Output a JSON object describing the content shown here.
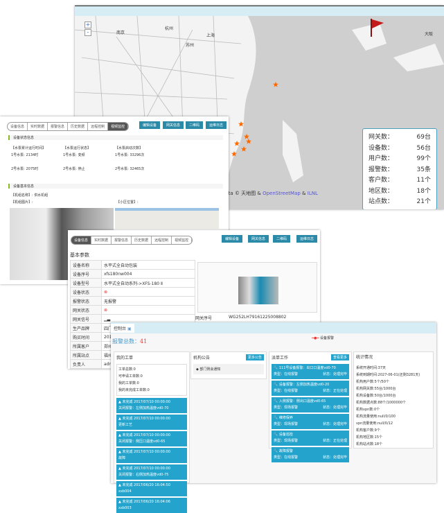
{
  "map": {
    "zoom_in": "+",
    "zoom_out": "-",
    "cities": [
      "南京",
      "杭州",
      "上海",
      "苏州",
      "大阪"
    ],
    "stats": [
      [
        "网关数：",
        "69台"
      ],
      [
        "设备数：",
        "56台"
      ],
      [
        "用户数：",
        "99个"
      ],
      [
        "报警数：",
        "35条"
      ],
      [
        "客户数：",
        "11个"
      ],
      [
        "地区数：",
        "18个"
      ],
      [
        "站点数：",
        "21个"
      ]
    ],
    "attribution": "Data © 天地图 & ",
    "attr_link1": "OpenStreetMap",
    "attr_sep": " & ",
    "attr_link2": "ILNL",
    "colors": {
      "marker": "#ff6a00",
      "flag": "#c41a1a"
    }
  },
  "left": {
    "tabs": [
      "设备信息",
      "实时数据",
      "报警信息",
      "历史数据",
      "远程控制",
      "视频监控"
    ],
    "buttons": [
      "编辑设备",
      "网关信息",
      "二维码",
      "运维日志"
    ],
    "section1": "设备状态信息",
    "cols": [
      [
        "【水泵累计运行时间】",
        "1号水泵: 2134时",
        "2号水泵: 2075时"
      ],
      [
        "【水泵运行状态】",
        "1号水泵: 变频",
        "2号水泵: 停止"
      ],
      [
        "【水泵启动次数】",
        "1号水泵: 33296次",
        "2号水泵: 32465次"
      ]
    ],
    "section2": "设备基本信息",
    "machine_name_label": "【机组名称】:",
    "machine_name": "供水机组",
    "machine_img_label": "【机组图片】:",
    "area_map_label": "【小区位置】:"
  },
  "detail": {
    "tabs": [
      "设备信息",
      "实时数据",
      "报警信息",
      "历史数据",
      "远程控制",
      "视频监控"
    ],
    "buttons": [
      "编辑设备",
      "网关信息",
      "二维码",
      "运维日志"
    ],
    "title": "基本参数",
    "rows": [
      [
        "设备名称",
        "水平式全自动包装"
      ],
      [
        "设备序号",
        "xfs180nw004"
      ],
      [
        "设备型号",
        "水平式全自动系列->XFS-180 Ⅱ"
      ],
      [
        "设备状态",
        "⊗"
      ],
      [
        "报警状态",
        "无报警"
      ],
      [
        "网关状态",
        "⊗"
      ],
      [
        "网关信号",
        "▁▃"
      ],
      [
        "生产品牌",
        "四门"
      ],
      [
        "购买时间",
        "201"
      ],
      [
        "所属客户",
        "郑州"
      ],
      [
        "所属站点",
        "福州"
      ],
      [
        "负责人",
        "admin"
      ]
    ],
    "serial_label": "网关序号",
    "serial": "WG252LH79161225008802"
  },
  "dash": {
    "tab": "控制台",
    "alarm_legend": "设备报警",
    "alarm_total_label": "报警总数：",
    "alarm_total": "41",
    "orders": {
      "title": "我的工单",
      "links": [
        "工单总数:0",
        "可申请工单数:0",
        "我的工单数:0",
        "我的未完成工单数:0"
      ],
      "cards": [
        [
          "未完成 2017/07/10 00:00:00",
          "关闭报警：左侧加热温度vd0-70"
        ],
        [
          "未完成 2017/07/10 00:00:00",
          "更新工艺"
        ],
        [
          "未完成 2017/07/10 00:00:00",
          "关闭报警：侧压口温度vd0-65"
        ],
        [
          "未完成 2017/07/10 00:00:00",
          "故障"
        ],
        [
          "未完成 2017/07/10 00:00:00",
          "关闭报警：右侧加热温度vd0-75"
        ],
        [
          "未完成 2017/06/20 16:04:50",
          "xxb004"
        ],
        [
          "未完成 2017/06/20 16:04:06",
          "xxb003"
        ]
      ]
    },
    "notice": {
      "title": "机构公告",
      "more": "更多公告",
      "items": [
        "◆ 部门例会通知"
      ]
    },
    "work": {
      "title": "派单工作",
      "more": "查看更多",
      "cards": [
        [
          "111号设备报警：出口口温度vd0-70",
          "类型：在线报警",
          "状态：处理完毕"
        ],
        [
          "设备报警：左侧加热温度vd0-20",
          "类型：在线报警",
          "状态：正在处理"
        ],
        [
          "入侧报警：侧出口温度vd0-65",
          "类型：现场报警",
          "状态：处理完毕"
        ],
        [
          "维修保养",
          "类型：现场报警",
          "状态：处理完毕"
        ],
        [
          "设备巡检",
          "类型：现场报警",
          "状态：正在处理"
        ],
        [
          "故障报警",
          "类型：在线报警",
          "状态：处理完毕"
        ]
      ]
    },
    "stats": {
      "title": "统计情况",
      "lines": [
        "系统开通时间:37天",
        "系统到期时间:2027-06-01(还剩3281天)",
        "机构用户数:5个/50个",
        "机构网关数:55台/1000台",
        "机构设备数:50台/1000台",
        "机构数据点数:88个/1000000个",
        "机构vpn数:0个",
        "机构流量使用:null/0/100",
        "vpn流量使用:null/0/12",
        "机构客户数:9个",
        "机构地区数:15个",
        "机构站点数:18个"
      ]
    }
  }
}
